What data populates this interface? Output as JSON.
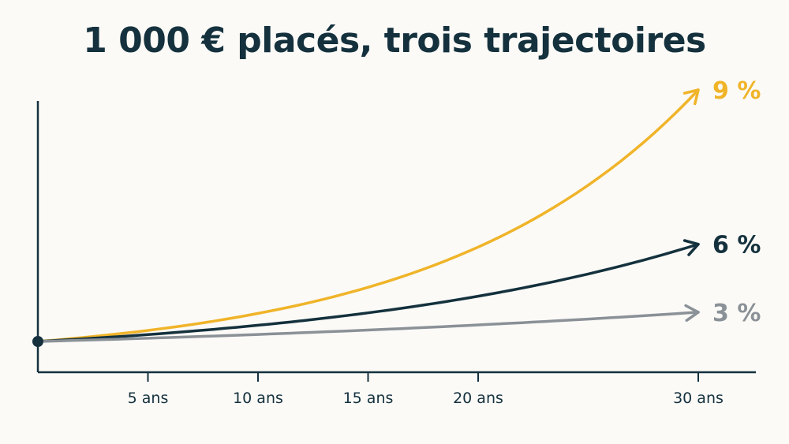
{
  "chart_data": {
    "type": "line",
    "title": "1 000 € placés, trois trajectoires",
    "xlabel": "",
    "ylabel": "",
    "x_ticks": [
      {
        "value": 5,
        "label": "5 ans"
      },
      {
        "value": 10,
        "label": "10 ans"
      },
      {
        "value": 15,
        "label": "15 ans"
      },
      {
        "value": 20,
        "label": "20 ans"
      },
      {
        "value": 30,
        "label": "30 ans"
      }
    ],
    "xlim": [
      0,
      30
    ],
    "ylim": [
      0,
      14000
    ],
    "grid": false,
    "legend": "none (series labelled at line ends)",
    "start_value": 1000,
    "series": [
      {
        "name": "9 %",
        "rate": 0.09,
        "color": "#f0b429",
        "x": [
          0,
          5,
          10,
          15,
          20,
          25,
          30
        ],
        "values": [
          1000,
          1539,
          2367,
          3642,
          5604,
          8623,
          13268
        ]
      },
      {
        "name": "6 %",
        "rate": 0.06,
        "color": "#14313d",
        "x": [
          0,
          5,
          10,
          15,
          20,
          25,
          30
        ],
        "values": [
          1000,
          1338,
          1791,
          2397,
          3207,
          4292,
          5743
        ]
      },
      {
        "name": "3 %",
        "rate": 0.03,
        "color": "#8a9197",
        "x": [
          0,
          5,
          10,
          15,
          20,
          25,
          30
        ],
        "values": [
          1000,
          1159,
          1344,
          1558,
          1806,
          2094,
          2427
        ]
      }
    ]
  }
}
